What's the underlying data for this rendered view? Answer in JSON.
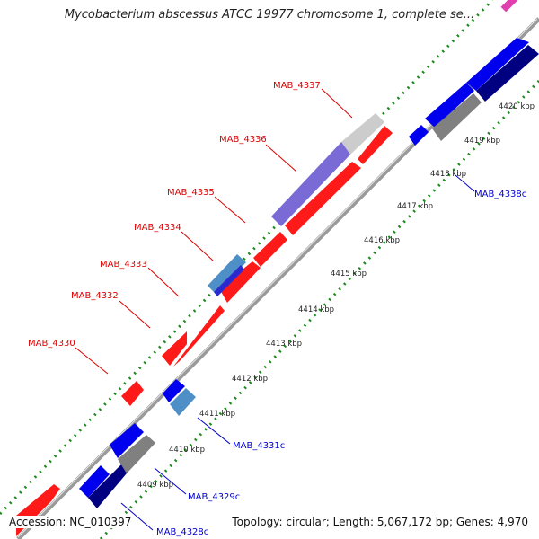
{
  "title": "Mycobacterium abscessus ATCC 19977 chromosome 1, complete se...",
  "footer": {
    "accession": "Accession: NC_010397",
    "summary": "Topology: circular; Length: 5,067,172 bp; Genes: 4,970"
  },
  "colors": {
    "forward_gene": "#ff1a1a",
    "reverse_gene": "#0000ee",
    "reverse_gene_dark": "#000080",
    "steel_gene": "#4f8fc8",
    "violet_gene": "#7a6ad6",
    "gray_gene": "#808080",
    "lightgray_gene": "#cccccc",
    "backbone": "#999999",
    "gc_dots": "#1a8a1a",
    "forward_label": "#dd0000",
    "reverse_label": "#0000cc"
  },
  "ticks": [
    "4409 kbp",
    "4410 kbp",
    "4411 kbp",
    "4412 kbp",
    "4413 kbp",
    "4414 kbp",
    "4415 kbp",
    "4416 kbp",
    "4417 kbp",
    "4418 kbp",
    "4419 kbp",
    "4420 kbp"
  ],
  "gene_labels": {
    "mab_4330": "MAB_4330",
    "mab_4332": "MAB_4332",
    "mab_4333": "MAB_4333",
    "mab_4334": "MAB_4334",
    "mab_4335": "MAB_4335",
    "mab_4336": "MAB_4336",
    "mab_4337": "MAB_4337",
    "mab_4328c": "MAB_4328c",
    "mab_4329c": "MAB_4329c",
    "mab_4331c": "MAB_4331c",
    "mab_4338c": "MAB_4338c"
  }
}
